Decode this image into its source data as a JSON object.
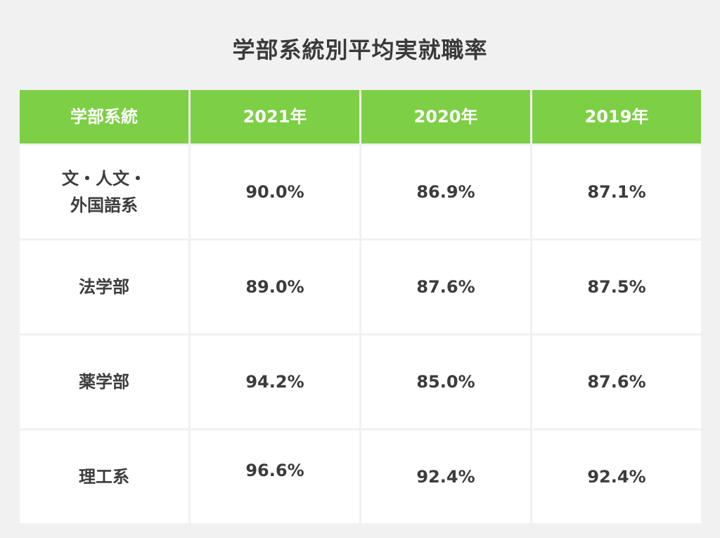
{
  "chart_data": {
    "type": "table",
    "title": "学部系統別平均実就職率",
    "columns": [
      "学部系統",
      "2021年",
      "2020年",
      "2019年"
    ],
    "rows": [
      {
        "label_line1": "文・人文・",
        "label_line2": "外国語系",
        "values": [
          "90.0%",
          "86.9%",
          "87.1%"
        ]
      },
      {
        "label": "法学部",
        "values": [
          "89.0%",
          "87.6%",
          "87.5%"
        ]
      },
      {
        "label": "薬学部",
        "values": [
          "94.2%",
          "85.0%",
          "87.6%"
        ]
      },
      {
        "label": "理工系",
        "values": [
          "96.6%",
          "92.4%",
          "92.4%"
        ]
      }
    ]
  },
  "colors": {
    "header_bg": "#7dcf45",
    "header_text": "#ffffff",
    "page_bg": "#f1f1f1",
    "cell_bg": "#ffffff",
    "text": "#3c3c3c"
  }
}
